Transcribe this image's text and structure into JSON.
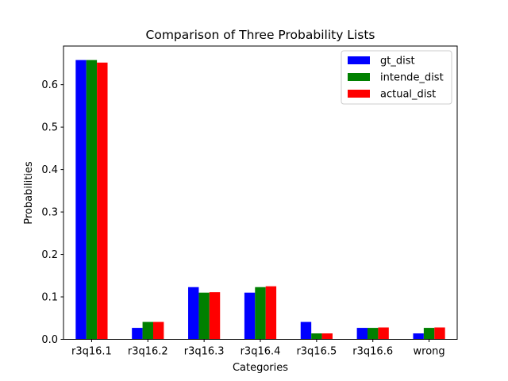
{
  "chart_data": {
    "type": "bar",
    "title": "Comparison of Three Probability Lists",
    "xlabel": "Categories",
    "ylabel": "Probabilities",
    "categories": [
      "r3q16.1",
      "r3q16.2",
      "r3q16.3",
      "r3q16.4",
      "r3q16.5",
      "r3q16.6",
      "wrong"
    ],
    "series": [
      {
        "name": "gt_dist",
        "color": "#0000ff",
        "values": [
          0.658,
          0.027,
          0.123,
          0.11,
          0.041,
          0.027,
          0.014
        ]
      },
      {
        "name": "intende_dist",
        "color": "#008000",
        "values": [
          0.658,
          0.041,
          0.11,
          0.123,
          0.014,
          0.027,
          0.027
        ]
      },
      {
        "name": "actual_dist",
        "color": "#ff0000",
        "values": [
          0.652,
          0.041,
          0.111,
          0.125,
          0.014,
          0.028,
          0.028
        ]
      }
    ],
    "yticks": [
      "0.0",
      "0.1",
      "0.2",
      "0.3",
      "0.4",
      "0.5",
      "0.6"
    ],
    "ylim": [
      0,
      0.691
    ],
    "grid": false,
    "legend_position": "top-right"
  }
}
